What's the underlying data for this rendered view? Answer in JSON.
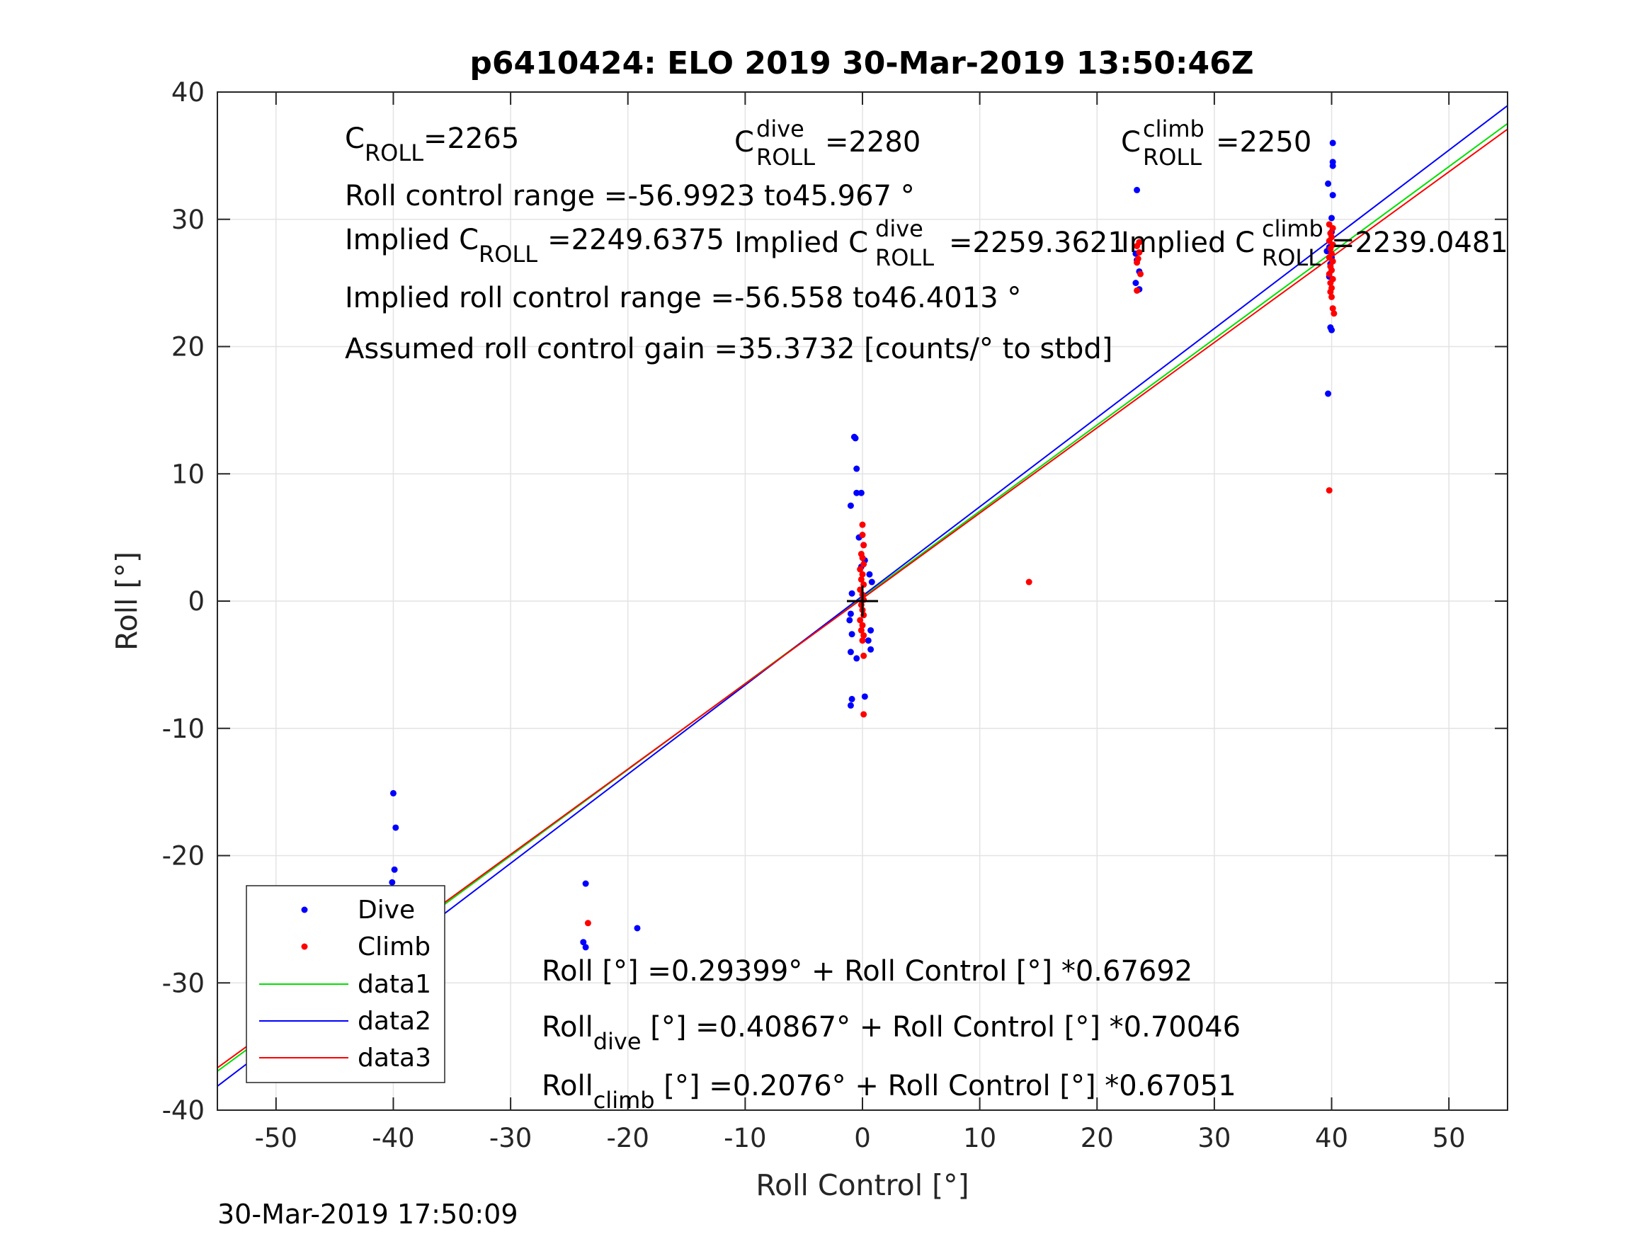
{
  "chart_data": {
    "type": "scatter",
    "title": "p6410424: ELO 2019 30-Mar-2019 13:50:46Z",
    "xlabel": "Roll Control [°]",
    "ylabel": "Roll [°]",
    "xlim": [
      -55,
      55
    ],
    "ylim": [
      -40,
      40
    ],
    "xticks": [
      "-50",
      "-40",
      "-30",
      "-20",
      "-10",
      "0",
      "10",
      "20",
      "30",
      "40",
      "50"
    ],
    "yticks": [
      "-40",
      "-30",
      "-20",
      "-10",
      "0",
      "10",
      "20",
      "30",
      "40"
    ],
    "grid": true,
    "legend_position": "bottom-left",
    "series": [
      {
        "name": "Dive",
        "kind": "markers",
        "color": "#0000ff",
        "points": [
          [
            -40,
            -15.1
          ],
          [
            -39.8,
            -17.8
          ],
          [
            -39.9,
            -21.1
          ],
          [
            -40.1,
            -22.1
          ],
          [
            -40,
            -24.6
          ],
          [
            -40.2,
            -26.7
          ],
          [
            -39.8,
            -27.5
          ],
          [
            -39.9,
            -28
          ],
          [
            -23.6,
            -22.2
          ],
          [
            -23.8,
            -26.8
          ],
          [
            -23.6,
            -27.2
          ],
          [
            -19.2,
            -25.7
          ],
          [
            -0.7,
            12.9
          ],
          [
            -0.6,
            12.8
          ],
          [
            -0.5,
            10.4
          ],
          [
            -0.5,
            8.5
          ],
          [
            -0.1,
            8.5
          ],
          [
            -1,
            7.5
          ],
          [
            -0.3,
            5
          ],
          [
            0.1,
            4.4
          ],
          [
            0.2,
            3.2
          ],
          [
            -0.1,
            2.7
          ],
          [
            0.6,
            2.1
          ],
          [
            0.8,
            1.5
          ],
          [
            -0.9,
            0.6
          ],
          [
            -1,
            -1
          ],
          [
            -1.1,
            -1.5
          ],
          [
            0.7,
            -2.3
          ],
          [
            -0.9,
            -2.6
          ],
          [
            0.5,
            -3.1
          ],
          [
            0.7,
            -3.8
          ],
          [
            -1,
            -4
          ],
          [
            -0.5,
            -4.5
          ],
          [
            -0.9,
            -7.7
          ],
          [
            -1,
            -8.2
          ],
          [
            0.2,
            -7.5
          ],
          [
            23.4,
            32.3
          ],
          [
            23.3,
            27.3
          ],
          [
            23.4,
            26.8
          ],
          [
            23.6,
            25.9
          ],
          [
            23.3,
            25
          ],
          [
            23.6,
            24.5
          ],
          [
            40.1,
            36
          ],
          [
            40.1,
            34.5
          ],
          [
            40.1,
            34.2
          ],
          [
            39.7,
            32.8
          ],
          [
            40.1,
            31.9
          ],
          [
            40,
            30.1
          ],
          [
            40,
            29
          ],
          [
            39.6,
            27.5
          ],
          [
            39.8,
            27.8
          ],
          [
            40,
            27
          ],
          [
            39.9,
            26.5
          ],
          [
            39.8,
            25.5
          ],
          [
            39.9,
            21.5
          ],
          [
            40,
            21.3
          ],
          [
            39.7,
            16.3
          ]
        ]
      },
      {
        "name": "Climb",
        "kind": "markers",
        "color": "#ff0000",
        "points": [
          [
            -40,
            -23.2
          ],
          [
            -40.1,
            -24
          ],
          [
            -40.2,
            -24.7
          ],
          [
            -39.9,
            -25.3
          ],
          [
            -40,
            -26
          ],
          [
            -39.9,
            -26.6
          ],
          [
            -40.1,
            -27
          ],
          [
            -40,
            -27.4
          ],
          [
            -23.4,
            -25.3
          ],
          [
            14.2,
            1.5
          ],
          [
            0,
            6
          ],
          [
            0,
            5.2
          ],
          [
            0.1,
            4.4
          ],
          [
            -0.1,
            3.7
          ],
          [
            0,
            3.4
          ],
          [
            0.1,
            2.9
          ],
          [
            -0.2,
            2.5
          ],
          [
            0,
            2.1
          ],
          [
            -0.1,
            1.7
          ],
          [
            0.1,
            1.3
          ],
          [
            -0.2,
            0.9
          ],
          [
            0,
            0.5
          ],
          [
            0.1,
            0.1
          ],
          [
            -0.1,
            -0.3
          ],
          [
            0,
            -0.7
          ],
          [
            0.1,
            -1.1
          ],
          [
            -0.2,
            -1.5
          ],
          [
            0,
            -1.9
          ],
          [
            -0.1,
            -2.3
          ],
          [
            0.1,
            -2.7
          ],
          [
            0,
            -3.1
          ],
          [
            0.1,
            -4.3
          ],
          [
            0.1,
            -8.9
          ],
          [
            23.6,
            28.2
          ],
          [
            23.4,
            27.9
          ],
          [
            23.6,
            27.4
          ],
          [
            23.5,
            26.9
          ],
          [
            23.4,
            26.6
          ],
          [
            23.7,
            25.7
          ],
          [
            23.4,
            24.4
          ],
          [
            39.8,
            29.6
          ],
          [
            40.1,
            29.3
          ],
          [
            39.9,
            28.9
          ],
          [
            40,
            28.6
          ],
          [
            39.8,
            28.3
          ],
          [
            40.1,
            28
          ],
          [
            39.9,
            27.7
          ],
          [
            40,
            27.3
          ],
          [
            39.8,
            27
          ],
          [
            40.1,
            26.7
          ],
          [
            39.9,
            26.3
          ],
          [
            40,
            26
          ],
          [
            39.8,
            25.7
          ],
          [
            40.1,
            25.3
          ],
          [
            39.9,
            25
          ],
          [
            40,
            24.6
          ],
          [
            39.9,
            24.3
          ],
          [
            40,
            23.9
          ],
          [
            40.1,
            23
          ],
          [
            40.2,
            22.6
          ],
          [
            39.8,
            8.7
          ]
        ]
      },
      {
        "name": "data1",
        "kind": "line",
        "color": "#00e000",
        "intercept": 0.29399,
        "slope": 0.67692
      },
      {
        "name": "data2",
        "kind": "line",
        "color": "#0000ff",
        "intercept": 0.40867,
        "slope": 0.70046
      },
      {
        "name": "data3",
        "kind": "line",
        "color": "#ff0000",
        "intercept": 0.2076,
        "slope": 0.67051
      }
    ],
    "center_marker": [
      0,
      0
    ],
    "annotations": {
      "c_roll": {
        "main": "C",
        "sub": "ROLL",
        "value": "=2265"
      },
      "c_roll_dive": {
        "main": "C",
        "sup": "dive",
        "sub": "ROLL",
        "value": "=2280"
      },
      "c_roll_climb": {
        "main": "C",
        "sup": "climb",
        "sub": "ROLL",
        "value": "=2250"
      },
      "control_range": "Roll control range =-56.9923 to45.967 °",
      "implied_c_roll": {
        "main": "Implied C",
        "sub": "ROLL",
        "value": "=2249.6375"
      },
      "implied_c_roll_dive": {
        "main": "Implied C",
        "sup": "dive",
        "sub": "ROLL",
        "value": "=2259.3621"
      },
      "implied_c_roll_climb": {
        "main": "Implied C",
        "sup": "climb",
        "sub": "ROLL",
        "value": "=2239.0481"
      },
      "implied_range": "Implied roll control range =-56.558 to46.4013 °",
      "gain": "Assumed roll control gain =35.3732 [counts/° to stbd]",
      "fit_all": "Roll [°] =0.29399° + Roll Control [°] *0.67692",
      "fit_dive": {
        "main": "Roll",
        "sub": "dive",
        "rest": " [°] =0.40867° + Roll Control [°] *0.70046"
      },
      "fit_climb": {
        "main": "Roll",
        "sub": "climb",
        "rest": " [°] =0.2076° + Roll Control [°] *0.67051"
      }
    },
    "legend": [
      "Dive",
      "Climb",
      "data1",
      "data2",
      "data3"
    ]
  },
  "timestamp": "30-Mar-2019 17:50:09"
}
